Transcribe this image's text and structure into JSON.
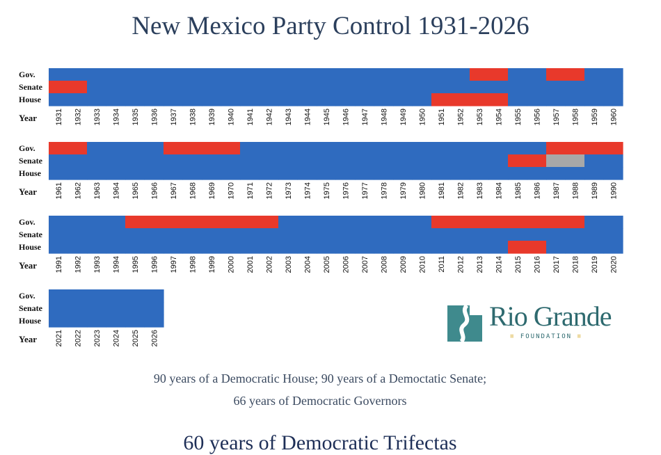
{
  "title": "New Mexico Party Control 1931-2026",
  "chart_data": {
    "type": "heatmap",
    "title": "New Mexico Party Control 1931-2026",
    "row_labels": [
      "Gov.",
      "Senate",
      "House"
    ],
    "year_label": "Year",
    "colors": {
      "D": "#2f6bbf",
      "R": "#e8392b",
      "Tie": "#a8a8a8"
    },
    "panels": [
      {
        "years": [
          1931,
          1932,
          1933,
          1934,
          1935,
          1936,
          1937,
          1938,
          1939,
          1940,
          1941,
          1942,
          1943,
          1944,
          1945,
          1946,
          1947,
          1948,
          1949,
          1950,
          1951,
          1952,
          1953,
          1954,
          1955,
          1956,
          1957,
          1958,
          1959,
          1960
        ],
        "Gov.": [
          "D",
          "D",
          "D",
          "D",
          "D",
          "D",
          "D",
          "D",
          "D",
          "D",
          "D",
          "D",
          "D",
          "D",
          "D",
          "D",
          "D",
          "D",
          "D",
          "D",
          "D",
          "D",
          "R",
          "R",
          "D",
          "D",
          "R",
          "R",
          "D",
          "D"
        ],
        "Senate": [
          "R",
          "R",
          "D",
          "D",
          "D",
          "D",
          "D",
          "D",
          "D",
          "D",
          "D",
          "D",
          "D",
          "D",
          "D",
          "D",
          "D",
          "D",
          "D",
          "D",
          "D",
          "D",
          "D",
          "D",
          "D",
          "D",
          "D",
          "D",
          "D",
          "D"
        ],
        "House": [
          "D",
          "D",
          "D",
          "D",
          "D",
          "D",
          "D",
          "D",
          "D",
          "D",
          "D",
          "D",
          "D",
          "D",
          "D",
          "D",
          "D",
          "D",
          "D",
          "D",
          "R",
          "R",
          "R",
          "R",
          "D",
          "D",
          "D",
          "D",
          "D",
          "D"
        ]
      },
      {
        "years": [
          1961,
          1962,
          1963,
          1964,
          1965,
          1966,
          1967,
          1968,
          1969,
          1970,
          1971,
          1972,
          1973,
          1974,
          1975,
          1976,
          1977,
          1978,
          1979,
          1980,
          1981,
          1982,
          1983,
          1984,
          1985,
          1986,
          1987,
          1988,
          1989,
          1990
        ],
        "Gov.": [
          "R",
          "R",
          "D",
          "D",
          "D",
          "D",
          "R",
          "R",
          "R",
          "R",
          "D",
          "D",
          "D",
          "D",
          "D",
          "D",
          "D",
          "D",
          "D",
          "D",
          "D",
          "D",
          "D",
          "D",
          "D",
          "D",
          "R",
          "R",
          "R",
          "R"
        ],
        "Senate": [
          "D",
          "D",
          "D",
          "D",
          "D",
          "D",
          "D",
          "D",
          "D",
          "D",
          "D",
          "D",
          "D",
          "D",
          "D",
          "D",
          "D",
          "D",
          "D",
          "D",
          "D",
          "D",
          "D",
          "D",
          "R",
          "R",
          "Tie",
          "Tie",
          "D",
          "D"
        ],
        "House": [
          "D",
          "D",
          "D",
          "D",
          "D",
          "D",
          "D",
          "D",
          "D",
          "D",
          "D",
          "D",
          "D",
          "D",
          "D",
          "D",
          "D",
          "D",
          "D",
          "D",
          "D",
          "D",
          "D",
          "D",
          "D",
          "D",
          "D",
          "D",
          "D",
          "D"
        ]
      },
      {
        "years": [
          1991,
          1992,
          1993,
          1994,
          1995,
          1996,
          1997,
          1998,
          1999,
          2000,
          2001,
          2002,
          2003,
          2004,
          2005,
          2006,
          2007,
          2008,
          2009,
          2010,
          2011,
          2012,
          2013,
          2014,
          2015,
          2016,
          2017,
          2018,
          2019,
          2020
        ],
        "Gov.": [
          "D",
          "D",
          "D",
          "D",
          "R",
          "R",
          "R",
          "R",
          "R",
          "R",
          "R",
          "R",
          "D",
          "D",
          "D",
          "D",
          "D",
          "D",
          "D",
          "D",
          "R",
          "R",
          "R",
          "R",
          "R",
          "R",
          "R",
          "R",
          "D",
          "D"
        ],
        "Senate": [
          "D",
          "D",
          "D",
          "D",
          "D",
          "D",
          "D",
          "D",
          "D",
          "D",
          "D",
          "D",
          "D",
          "D",
          "D",
          "D",
          "D",
          "D",
          "D",
          "D",
          "D",
          "D",
          "D",
          "D",
          "D",
          "D",
          "D",
          "D",
          "D",
          "D"
        ],
        "House": [
          "D",
          "D",
          "D",
          "D",
          "D",
          "D",
          "D",
          "D",
          "D",
          "D",
          "D",
          "D",
          "D",
          "D",
          "D",
          "D",
          "D",
          "D",
          "D",
          "D",
          "D",
          "D",
          "D",
          "D",
          "R",
          "R",
          "D",
          "D",
          "D",
          "D"
        ]
      },
      {
        "years": [
          2021,
          2022,
          2023,
          2024,
          2025,
          2026
        ],
        "Gov.": [
          "D",
          "D",
          "D",
          "D",
          "D",
          "D"
        ],
        "Senate": [
          "D",
          "D",
          "D",
          "D",
          "D",
          "D"
        ],
        "House": [
          "D",
          "D",
          "D",
          "D",
          "D",
          "D"
        ]
      }
    ]
  },
  "logo": {
    "name": "Rio Grande",
    "subtitle": "FOUNDATION",
    "bars": "≡",
    "icon": "rio-grande-river-icon",
    "colors": {
      "teal": "#2e6a6f",
      "gold": "#d9b23a"
    }
  },
  "summary": {
    "line1": "90 years of a Democratic House; 90 years of a Democtatic Senate;",
    "line2": "66 years of Democratic Governors"
  },
  "footer_title": "60 years of Democratic Trifectas"
}
